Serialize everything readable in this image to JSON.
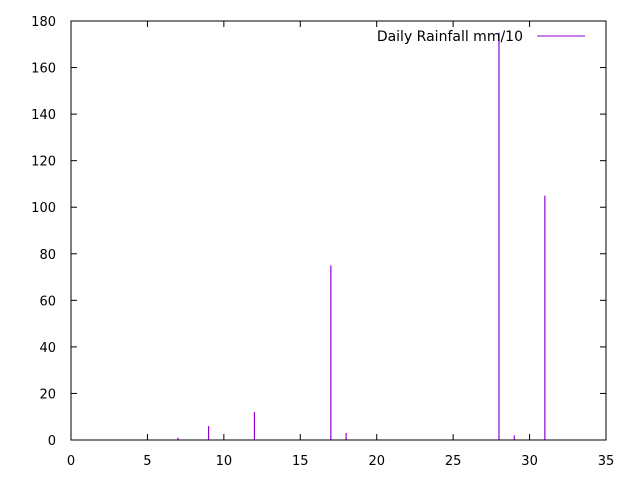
{
  "chart_data": {
    "type": "impulse",
    "x_label": "",
    "y_label": "",
    "xlim": [
      0,
      35
    ],
    "ylim": [
      0,
      180
    ],
    "x_ticks": [
      0,
      5,
      10,
      15,
      20,
      25,
      30,
      35
    ],
    "y_ticks": [
      0,
      20,
      40,
      60,
      80,
      100,
      120,
      140,
      160,
      180
    ],
    "grid": false,
    "legend_position": "top-right",
    "series": [
      {
        "name": "Daily Rainfall mm/10",
        "color": "#9400d3",
        "x": [
          1,
          2,
          3,
          4,
          5,
          6,
          7,
          8,
          9,
          10,
          11,
          12,
          13,
          14,
          15,
          16,
          17,
          18,
          19,
          20,
          21,
          22,
          23,
          24,
          25,
          26,
          27,
          28,
          29,
          30,
          31
        ],
        "y": [
          0,
          0,
          0,
          0,
          0,
          0,
          1,
          0,
          6,
          0,
          0,
          12,
          0,
          0,
          0,
          0,
          75,
          3,
          0,
          0,
          0,
          0,
          0,
          0,
          0,
          0,
          0,
          175,
          2,
          0,
          105
        ]
      }
    ]
  }
}
